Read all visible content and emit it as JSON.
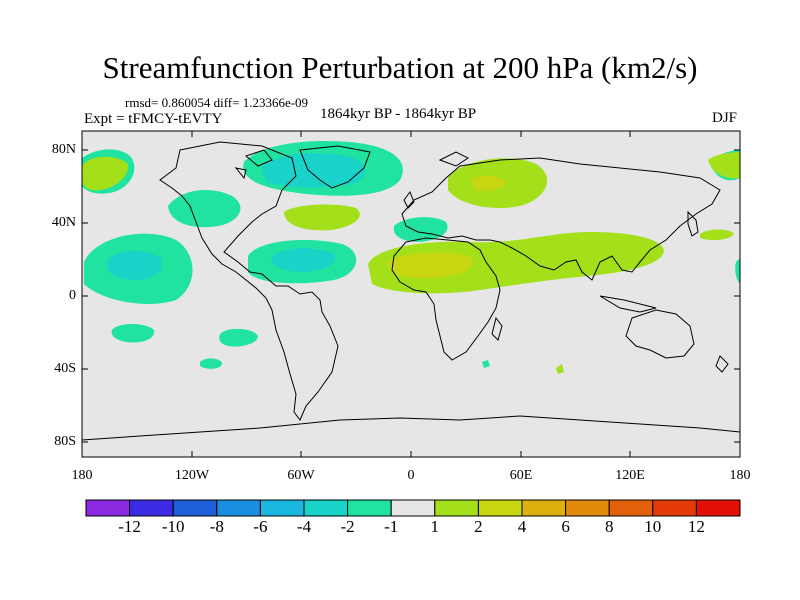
{
  "title": "Streamfunction Perturbation at 200 hPa (km2/s)",
  "stats": "rmsd= 0.860054 diff= 1.23366e-09",
  "experiment": "Expt = tFMCY-tEVTY",
  "period": "1864kyr BP - 1864kyr BP",
  "season": "DJF",
  "y_ticks": [
    "80N",
    "40N",
    "0",
    "40S",
    "80S"
  ],
  "x_ticks": [
    "180",
    "120W",
    "60W",
    "0",
    "60E",
    "120E",
    "180"
  ],
  "colorbar": {
    "labels": [
      "-12",
      "-10",
      "-8",
      "-6",
      "-4",
      "-2",
      "-1",
      "1",
      "2",
      "4",
      "6",
      "8",
      "10",
      "12"
    ],
    "colors": [
      "#8a2be2",
      "#3b2be2",
      "#1c5fd8",
      "#1a8ee0",
      "#19b6e0",
      "#19d2c8",
      "#21e3a0",
      "#e6e6e6",
      "#a3e01a",
      "#c8d612",
      "#dcb10e",
      "#e08a0c",
      "#e3600a",
      "#e33a08",
      "#e31008"
    ]
  },
  "map": {
    "background": "#e6e6e6",
    "neg1_color": "#21e3a0",
    "neg2_color": "#19d2c8",
    "pos1_color": "#a3e01a",
    "pos2_color": "#c8d612"
  }
}
